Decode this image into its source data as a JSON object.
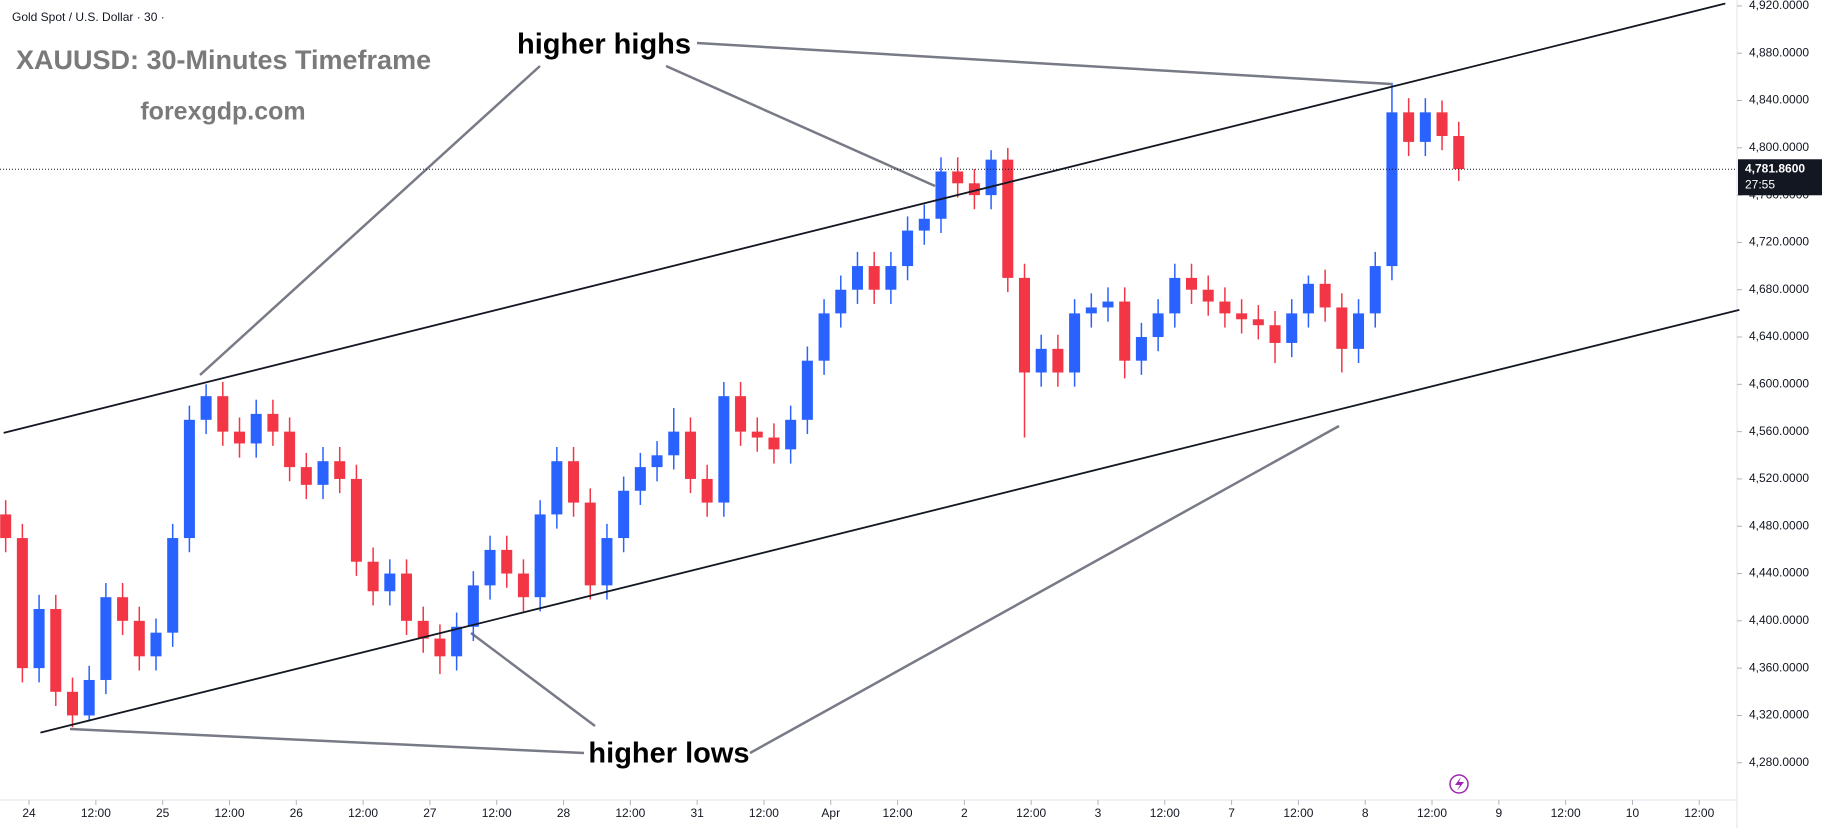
{
  "chart_data": {
    "type": "candlestick",
    "title": "Gold Spot / U.S. Dollar · 30 ·",
    "annotations": {
      "headline": "XAUUSD: 30-Minutes Timeframe",
      "site": "forexgdp.com",
      "highs": "higher highs",
      "lows": "higher lows"
    },
    "up_color": "#2962ff",
    "down_color": "#f23645",
    "line_color": "#131722",
    "last_price": {
      "value": 4781.86,
      "label": "4,781.8600"
    },
    "countdown": "27:55",
    "xlim": [
      -0.435,
      25.565
    ],
    "ylim": [
      4248.5,
      4925
    ],
    "xticks": [
      {
        "value": 0,
        "label": "24"
      },
      {
        "value": 1,
        "label": "12:00"
      },
      {
        "value": 2,
        "label": "25"
      },
      {
        "value": 3,
        "label": "12:00"
      },
      {
        "value": 4,
        "label": "26"
      },
      {
        "value": 5,
        "label": "12:00"
      },
      {
        "value": 6,
        "label": "27"
      },
      {
        "value": 7,
        "label": "12:00"
      },
      {
        "value": 8,
        "label": "28"
      },
      {
        "value": 9,
        "label": "12:00"
      },
      {
        "value": 10,
        "label": "31"
      },
      {
        "value": 11,
        "label": "12:00"
      },
      {
        "value": 12,
        "label": "Apr"
      },
      {
        "value": 13,
        "label": "12:00"
      },
      {
        "value": 14,
        "label": "2"
      },
      {
        "value": 15,
        "label": "12:00"
      },
      {
        "value": 16,
        "label": "3"
      },
      {
        "value": 17,
        "label": "12:00"
      },
      {
        "value": 18,
        "label": "7"
      },
      {
        "value": 19,
        "label": "12:00"
      },
      {
        "value": 20,
        "label": "8"
      },
      {
        "value": 21,
        "label": "12:00"
      },
      {
        "value": 22,
        "label": "9"
      },
      {
        "value": 23,
        "label": "12:00"
      },
      {
        "value": 24,
        "label": "10"
      },
      {
        "value": 25,
        "label": "12:00"
      }
    ],
    "yticks": [
      {
        "value": 4280,
        "label": "4,280.0000"
      },
      {
        "value": 4320,
        "label": "4,320.0000"
      },
      {
        "value": 4360,
        "label": "4,360.0000"
      },
      {
        "value": 4400,
        "label": "4,400.0000"
      },
      {
        "value": 4440,
        "label": "4,440.0000"
      },
      {
        "value": 4480,
        "label": "4,480.0000"
      },
      {
        "value": 4520,
        "label": "4,520.0000"
      },
      {
        "value": 4560,
        "label": "4,560.0000"
      },
      {
        "value": 4600,
        "label": "4,600.0000"
      },
      {
        "value": 4640,
        "label": "4,640.0000"
      },
      {
        "value": 4680,
        "label": "4,680.0000"
      },
      {
        "value": 4720,
        "label": "4,720.0000"
      },
      {
        "value": 4760,
        "label": "4,760.0000"
      },
      {
        "value": 4800,
        "label": "4,800.0000"
      },
      {
        "value": 4840,
        "label": "4,840.0000"
      },
      {
        "value": 4880,
        "label": "4,880.0000"
      },
      {
        "value": 4920,
        "label": "4,920.0000"
      }
    ],
    "x": [
      -0.35,
      -0.1,
      0.15,
      0.4,
      0.65,
      0.9,
      1.15,
      1.4,
      1.65,
      1.9,
      2.15,
      2.4,
      2.65,
      2.9,
      3.15,
      3.4,
      3.65,
      3.9,
      4.15,
      4.4,
      4.65,
      4.9,
      5.15,
      5.4,
      5.65,
      5.9,
      6.15,
      6.4,
      6.65,
      6.9,
      7.15,
      7.4,
      7.65,
      7.9,
      8.15,
      8.4,
      8.65,
      8.9,
      9.15,
      9.4,
      9.65,
      9.9,
      10.15,
      10.4,
      10.65,
      10.9,
      11.15,
      11.4,
      11.65,
      11.9,
      12.15,
      12.4,
      12.65,
      12.9,
      13.15,
      13.4,
      13.65,
      13.9,
      14.15,
      14.4,
      14.65,
      14.9,
      15.15,
      15.4,
      15.65,
      15.9,
      16.15,
      16.4,
      16.65,
      16.9,
      17.15,
      17.4,
      17.65,
      17.9,
      18.15,
      18.4,
      18.65,
      18.9,
      19.15,
      19.4,
      19.65,
      19.9,
      20.15,
      20.4,
      20.65,
      20.9,
      21.15,
      21.4
    ],
    "open": [
      4490,
      4470,
      4360,
      4410,
      4340,
      4320,
      4350,
      4420,
      4400,
      4370,
      4390,
      4470,
      4570,
      4590,
      4560,
      4550,
      4575,
      4560,
      4530,
      4515,
      4535,
      4520,
      4450,
      4425,
      4440,
      4400,
      4385,
      4370,
      4395,
      4430,
      4460,
      4440,
      4420,
      4490,
      4535,
      4500,
      4430,
      4470,
      4510,
      4530,
      4540,
      4560,
      4520,
      4500,
      4590,
      4560,
      4555,
      4545,
      4570,
      4620,
      4660,
      4680,
      4700,
      4680,
      4700,
      4730,
      4740,
      4780,
      4770,
      4760,
      4790,
      4690,
      4610,
      4630,
      4610,
      4660,
      4665,
      4670,
      4620,
      4640,
      4660,
      4690,
      4680,
      4670,
      4660,
      4655,
      4650,
      4635,
      4660,
      4685,
      4665,
      4630,
      4660,
      4700,
      4830,
      4805,
      4830,
      4810
    ],
    "high": [
      4502,
      4482,
      4422,
      4422,
      4352,
      4362,
      4432,
      4432,
      4412,
      4402,
      4482,
      4582,
      4600,
      4602,
      4572,
      4587,
      4587,
      4572,
      4542,
      4547,
      4547,
      4532,
      4462,
      4452,
      4452,
      4412,
      4397,
      4407,
      4442,
      4472,
      4472,
      4452,
      4502,
      4547,
      4547,
      4512,
      4482,
      4522,
      4542,
      4552,
      4580,
      4572,
      4532,
      4602,
      4602,
      4572,
      4567,
      4582,
      4632,
      4672,
      4692,
      4712,
      4712,
      4712,
      4742,
      4752,
      4792,
      4792,
      4782,
      4798,
      4800,
      4702,
      4642,
      4642,
      4672,
      4677,
      4682,
      4682,
      4652,
      4672,
      4702,
      4702,
      4692,
      4682,
      4672,
      4667,
      4662,
      4672,
      4692,
      4697,
      4677,
      4672,
      4712,
      4855,
      4842,
      4842,
      4840,
      4822
    ],
    "low": [
      4458,
      4348,
      4348,
      4328,
      4310,
      4315,
      4338,
      4388,
      4358,
      4358,
      4378,
      4458,
      4558,
      4548,
      4538,
      4538,
      4548,
      4518,
      4503,
      4503,
      4508,
      4438,
      4413,
      4413,
      4388,
      4373,
      4355,
      4358,
      4383,
      4418,
      4428,
      4408,
      4408,
      4478,
      4488,
      4418,
      4418,
      4458,
      4498,
      4518,
      4528,
      4508,
      4488,
      4488,
      4548,
      4543,
      4533,
      4533,
      4558,
      4608,
      4648,
      4668,
      4668,
      4668,
      4688,
      4718,
      4728,
      4758,
      4748,
      4748,
      4678,
      4555,
      4598,
      4598,
      4598,
      4648,
      4653,
      4605,
      4608,
      4628,
      4648,
      4668,
      4658,
      4648,
      4643,
      4638,
      4618,
      4623,
      4648,
      4653,
      4610,
      4618,
      4648,
      4688,
      4793,
      4793,
      4798,
      4772
    ],
    "close": [
      4470,
      4360,
      4410,
      4340,
      4320,
      4350,
      4420,
      4400,
      4370,
      4390,
      4470,
      4570,
      4590,
      4560,
      4550,
      4575,
      4560,
      4530,
      4515,
      4535,
      4520,
      4450,
      4425,
      4440,
      4400,
      4385,
      4370,
      4395,
      4430,
      4460,
      4440,
      4420,
      4490,
      4535,
      4500,
      4430,
      4470,
      4510,
      4530,
      4540,
      4560,
      4520,
      4500,
      4590,
      4560,
      4555,
      4545,
      4570,
      4620,
      4660,
      4680,
      4700,
      4680,
      4700,
      4730,
      4740,
      4780,
      4770,
      4760,
      4790,
      4690,
      4610,
      4630,
      4610,
      4660,
      4665,
      4670,
      4620,
      4640,
      4660,
      4690,
      4680,
      4670,
      4660,
      4655,
      4650,
      4635,
      4660,
      4685,
      4665,
      4630,
      4660,
      4700,
      4830,
      4805,
      4830,
      4810,
      4782
    ],
    "trendlines": [
      {
        "x": [
          -0.38,
          25.39
        ],
        "y": [
          4559,
          4922
        ]
      },
      {
        "x": [
          0.17,
          25.6
        ],
        "y": [
          4305.5,
          4663
        ]
      }
    ]
  }
}
